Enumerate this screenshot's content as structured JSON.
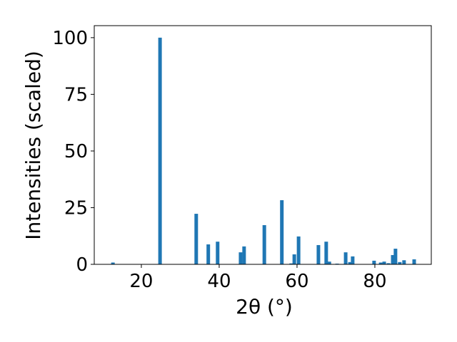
{
  "chart_data": {
    "type": "bar",
    "x_label": "2θ (°)",
    "y_label": "Intensities (scaled)",
    "color": "#1f77b4",
    "x": [
      12.7,
      24.8,
      34.1,
      37.2,
      39.6,
      45.5,
      46.4,
      51.6,
      56.1,
      58.5,
      59.3,
      60.4,
      65.5,
      67.5,
      68.3,
      70.3,
      72.5,
      73.6,
      74.3,
      79.8,
      81.5,
      82.4,
      83.5,
      84.6,
      85.3,
      86.4,
      87.5,
      90.1
    ],
    "values": [
      0.8,
      100,
      22.3,
      8.8,
      10,
      5.3,
      7.9,
      17.3,
      28.3,
      0.4,
      4.4,
      12.3,
      8.5,
      10,
      1.2,
      0.3,
      5.3,
      1,
      3.5,
      1.6,
      0.8,
      1.2,
      0.5,
      4.1,
      6.9,
      1,
      1.8,
      2.2
    ],
    "xlim": [
      7.9,
      94.5
    ],
    "ylim": [
      0,
      105.3
    ],
    "xticks": [
      20,
      40,
      60,
      80
    ],
    "yticks": [
      0,
      25,
      50,
      75,
      100
    ]
  }
}
